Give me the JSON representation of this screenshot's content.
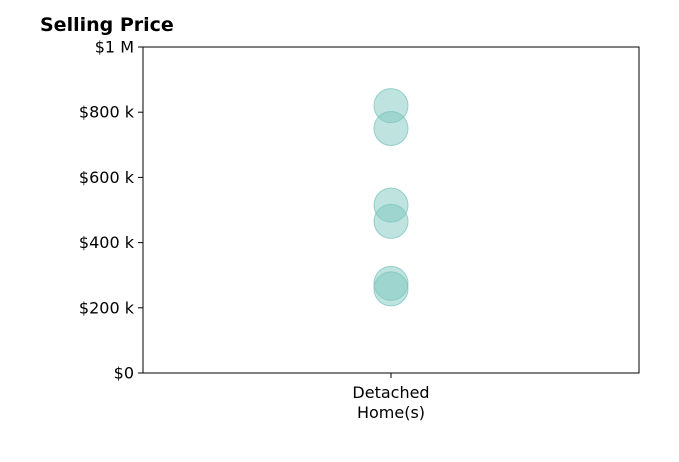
{
  "chart_data": {
    "type": "scatter",
    "title": "Selling Price",
    "categories": [
      "Detached\nHome(s)"
    ],
    "series": [
      {
        "category": "Detached\nHome(s)",
        "values": [
          820000,
          750000,
          515000,
          465000,
          275000,
          258000
        ]
      }
    ],
    "ylim": [
      0,
      1000000
    ],
    "yticks": [
      0,
      200000,
      400000,
      600000,
      800000,
      1000000
    ],
    "ytick_labels": [
      "$0",
      "$200 k",
      "$400 k",
      "$600 k",
      "$800 k",
      "$1 M"
    ],
    "xlabel": "",
    "ylabel": "",
    "grid": false,
    "marker_color": "#7fc7c0"
  }
}
